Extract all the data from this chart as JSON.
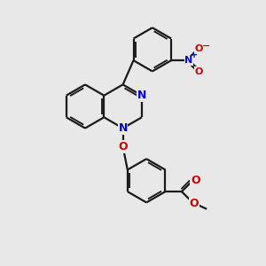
{
  "background_color": "#e8e8e8",
  "bond_color": "#1a1a1a",
  "nitrogen_color": "#0000cc",
  "oxygen_color": "#cc0000",
  "line_width": 1.6,
  "figsize": [
    3.0,
    3.0
  ],
  "dpi": 100,
  "xlim": [
    0,
    10
  ],
  "ylim": [
    0,
    10
  ]
}
